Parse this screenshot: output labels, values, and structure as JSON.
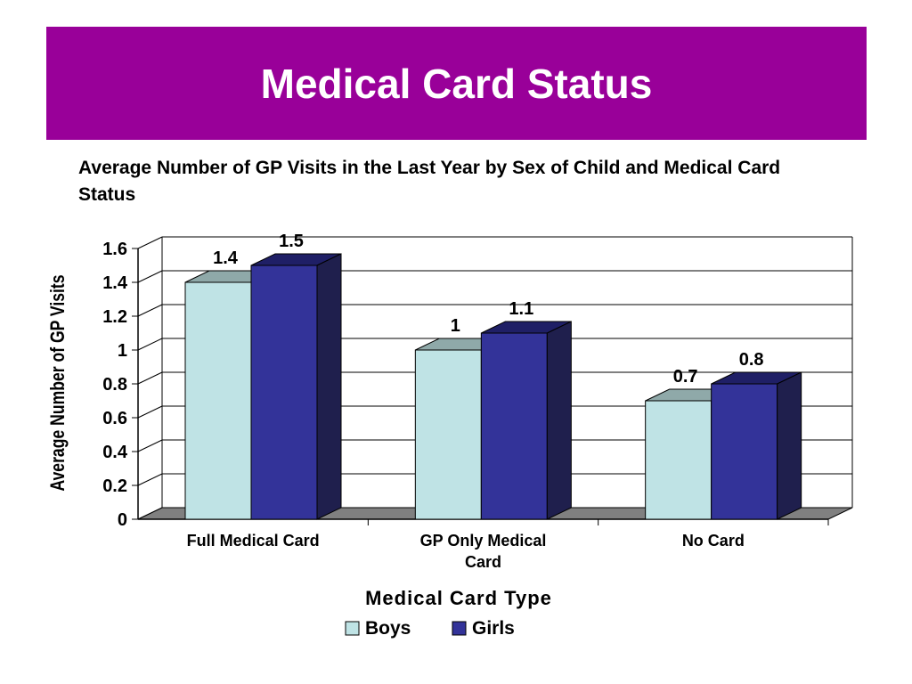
{
  "slide": {
    "title": "Medical Card Status",
    "subtitle": "Average Number of GP Visits in the Last Year by Sex of Child and Medical Card Status"
  },
  "chart_data": {
    "type": "bar",
    "title": "Average Number of GP Visits in the Last Year by Sex of Child and Medical Card Status",
    "categories": [
      "Full Medical Card",
      "GP Only Medical Card",
      "No Card"
    ],
    "category_lines": [
      [
        "Full Medical Card"
      ],
      [
        "GP Only Medical",
        "Card"
      ],
      [
        "No Card"
      ]
    ],
    "series": [
      {
        "name": "Boys",
        "values": [
          1.4,
          1,
          0.7
        ],
        "labels": [
          "1.4",
          "1",
          "0.7"
        ],
        "color": "#BFE3E5",
        "top_color": "#8FA9A9"
      },
      {
        "name": "Girls",
        "values": [
          1.5,
          1.1,
          0.8
        ],
        "labels": [
          "1.5",
          "1.1",
          "0.8"
        ],
        "color": "#333399",
        "top_color": "#1F1F66",
        "side_color": "#1F1F4D"
      }
    ],
    "xlabel": "Medical Card Type",
    "ylabel": "Average Number of GP Visits",
    "ylim": [
      0,
      1.6
    ],
    "yticks": [
      0,
      0.2,
      0.4,
      0.6,
      0.8,
      1,
      1.2,
      1.4,
      1.6
    ],
    "ytick_labels": [
      "0",
      "0.2",
      "0.4",
      "0.6",
      "0.8",
      "1",
      "1.2",
      "1.4",
      "1.6"
    ],
    "grid": true,
    "three_d": true,
    "floor_color": "#808080",
    "legend_position": "bottom"
  }
}
